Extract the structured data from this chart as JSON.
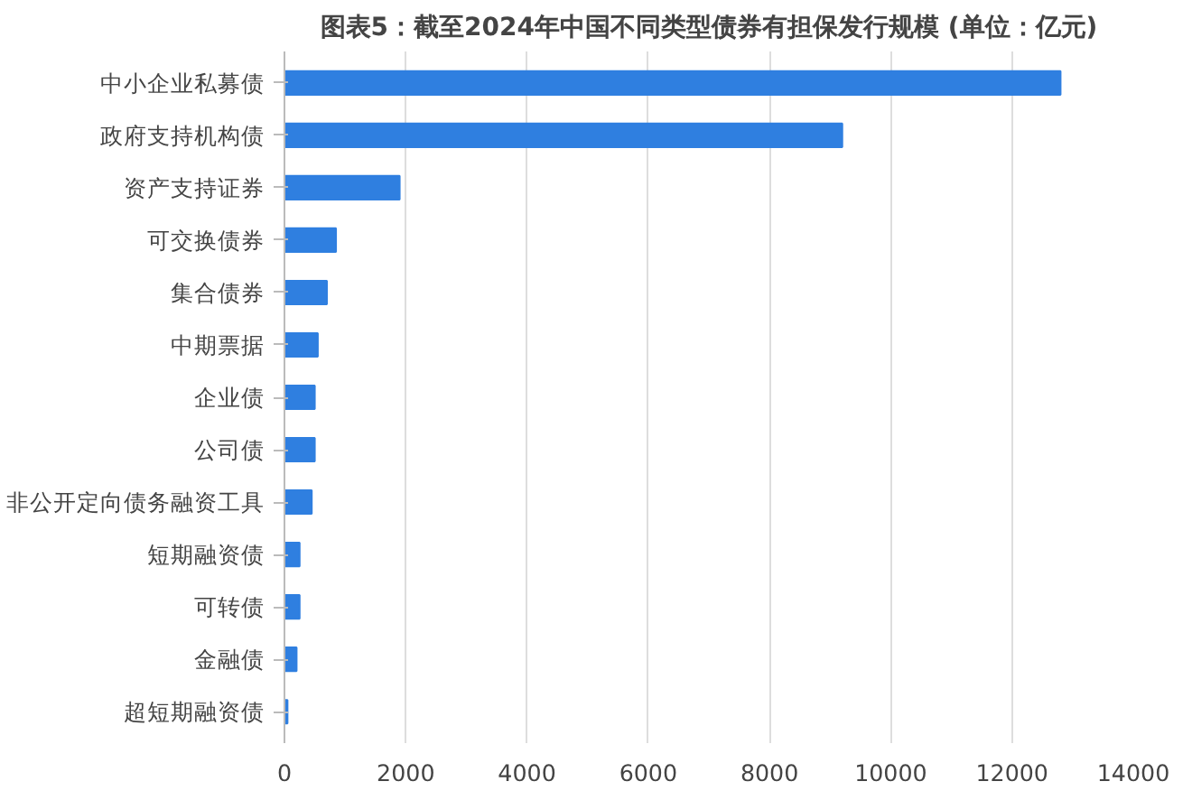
{
  "chart_data": {
    "type": "bar",
    "orientation": "horizontal",
    "title": "图表5：截至2024年中国不同类型债券有担保发行规模 (单位：亿元)",
    "categories": [
      "中小企业私募债",
      "政府支持机构债",
      "资产支持证券",
      "可交换债券",
      "集合债券",
      "中期票据",
      "企业债",
      "公司债",
      "非公开定向债务融资工具",
      "短期融资债",
      "可转债",
      "金融债",
      "超短期融资债"
    ],
    "values": [
      12800,
      9200,
      1900,
      850,
      700,
      550,
      500,
      500,
      450,
      250,
      250,
      200,
      50
    ],
    "color": "#2f7fe0",
    "xlim": [
      0,
      14000
    ],
    "xticks": [
      0,
      2000,
      4000,
      6000,
      8000,
      10000,
      12000,
      14000
    ],
    "grid": "x"
  }
}
